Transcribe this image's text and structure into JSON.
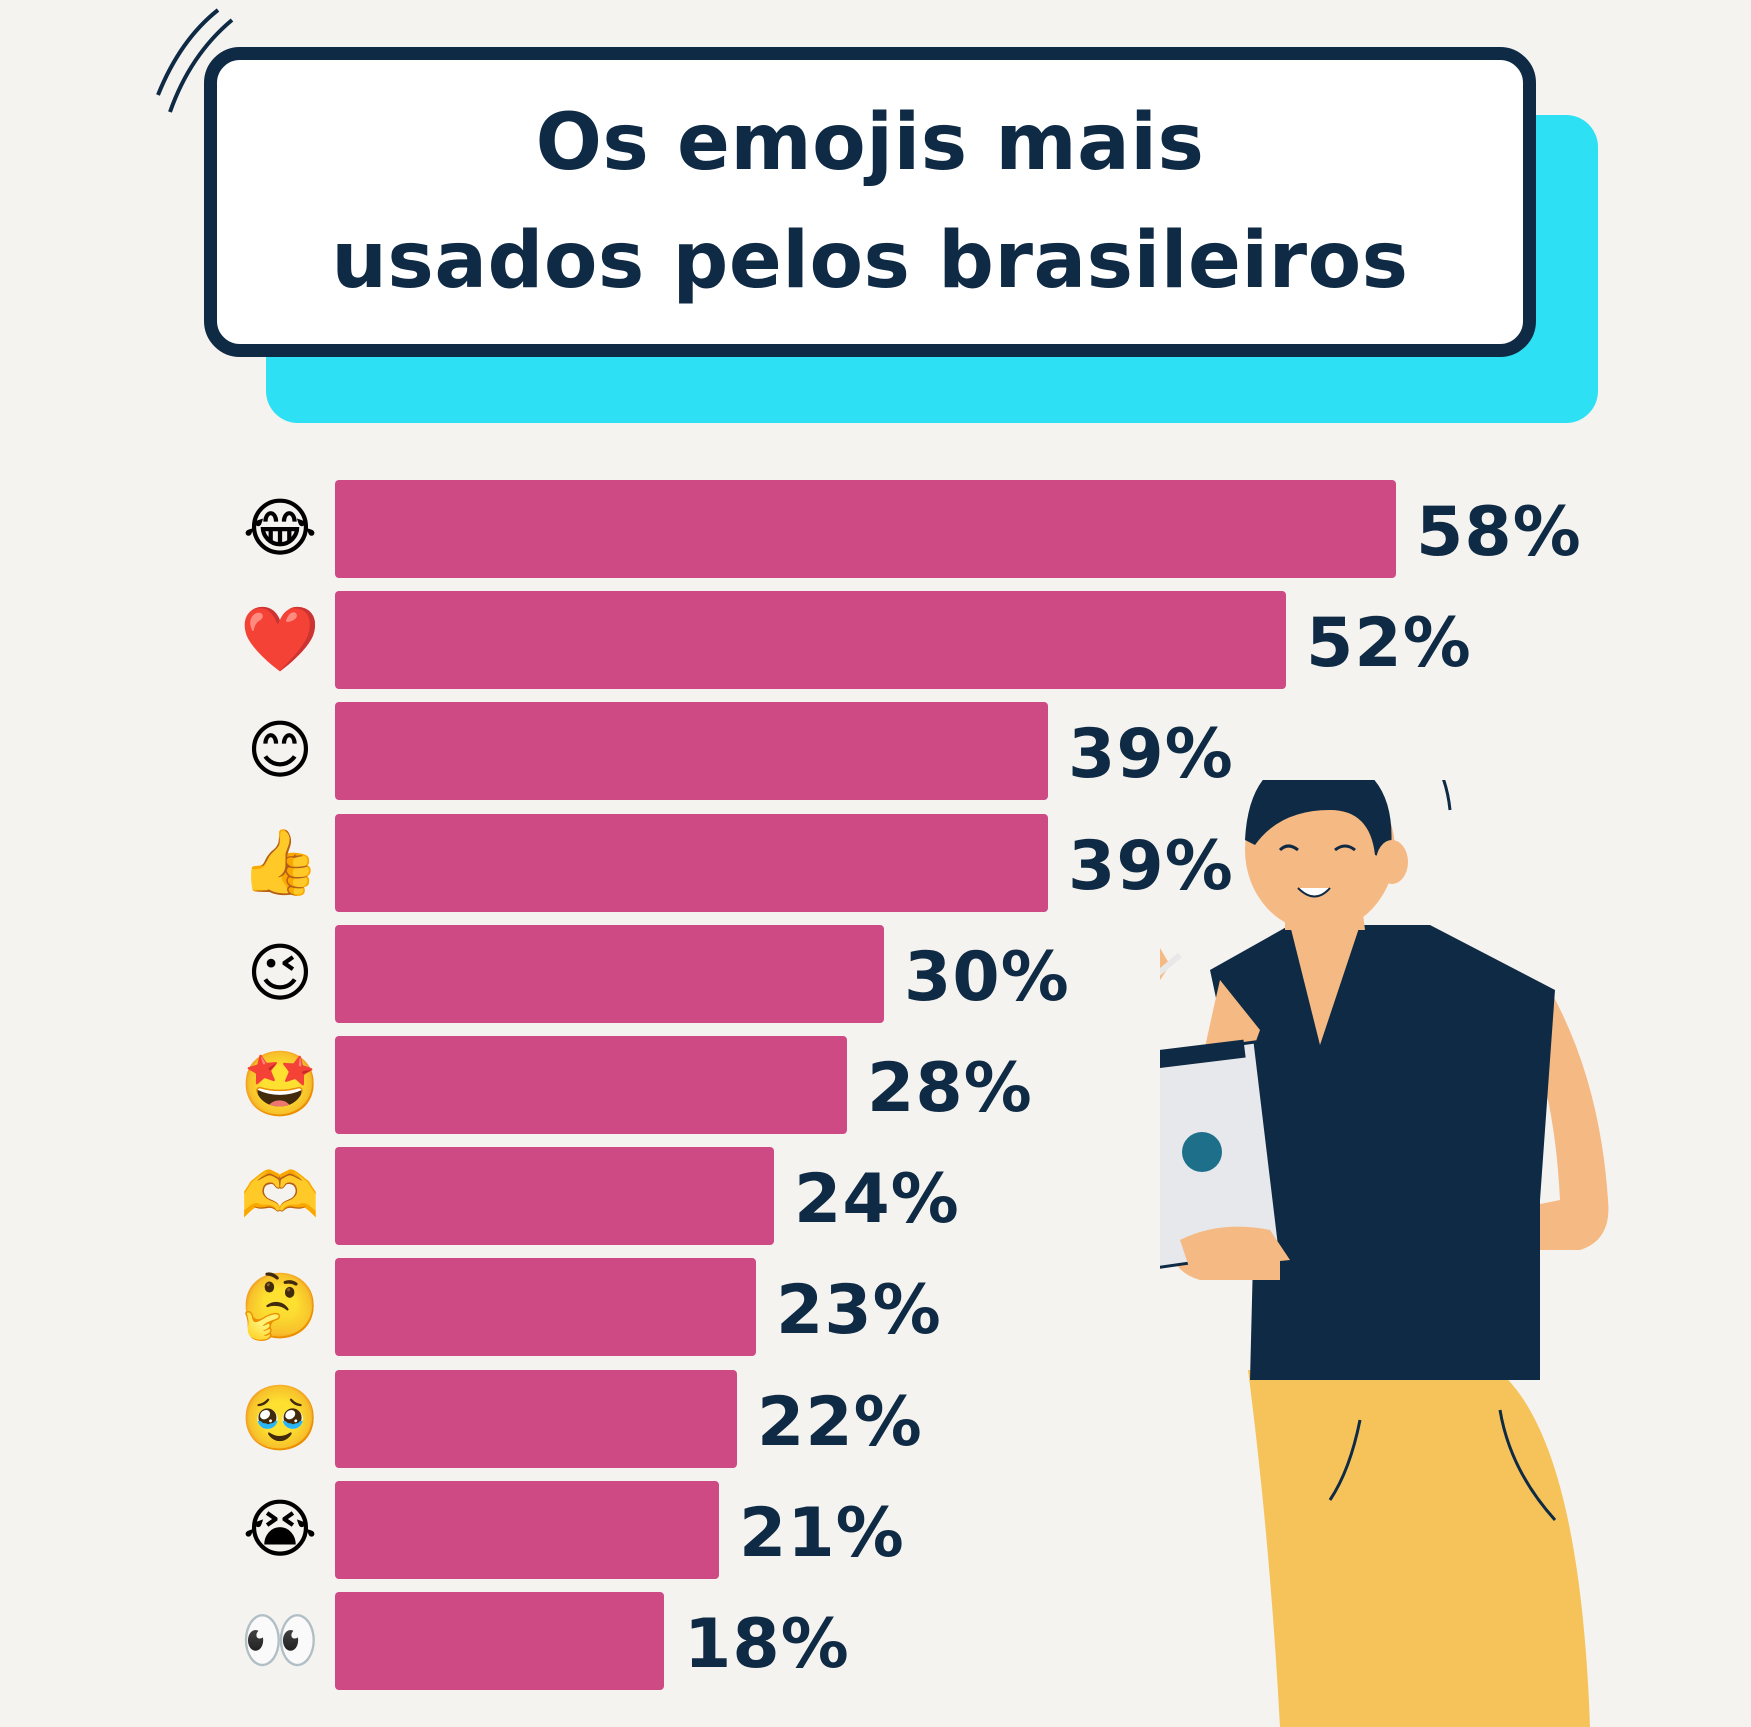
{
  "title": {
    "line1": "Os emojis mais",
    "line2": "usados pelos brasileiros"
  },
  "colors": {
    "bar": "#cd4a84",
    "title_border": "#0f2a44",
    "title_shadow": "#2ee0f4",
    "background": "#f5f3ef",
    "text": "#0f2a44"
  },
  "chart_data": {
    "type": "bar",
    "orientation": "horizontal",
    "categories": [
      "😂",
      "❤️",
      "😊",
      "👍",
      "😉",
      "🤩",
      "🫶",
      "🤔",
      "🥹",
      "😭",
      "👀"
    ],
    "values": [
      58,
      52,
      39,
      39,
      30,
      28,
      24,
      23,
      22,
      21,
      18
    ],
    "labels": [
      "58%",
      "52%",
      "39%",
      "39%",
      "30%",
      "28%",
      "24%",
      "23%",
      "22%",
      "21%",
      "18%"
    ],
    "title": "Os emojis mais usados pelos brasileiros",
    "unit": "%",
    "xlim": [
      0,
      58
    ],
    "grid": false
  },
  "illustration": {
    "subject": "woman-holding-tablet-icon",
    "tablet_logo": "apple-logo-icon"
  }
}
